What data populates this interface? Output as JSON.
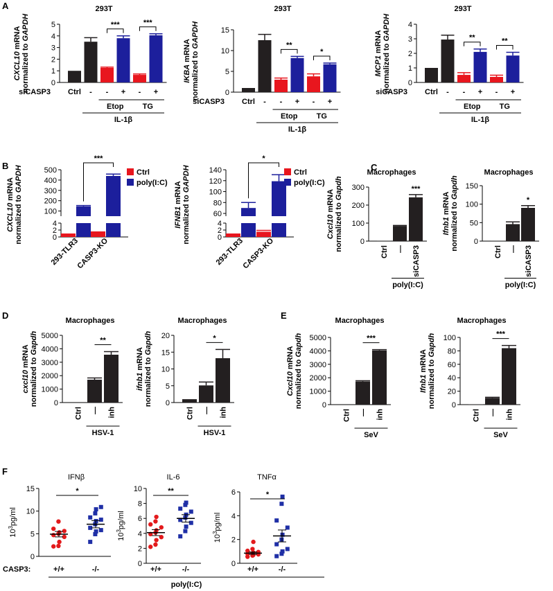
{
  "figure": {
    "colors": {
      "black": "#231f20",
      "red": "#e8161e",
      "blue": "#1c1f9c",
      "red_dot": "#e31a1c",
      "blue_dot": "#1f2fa6"
    }
  },
  "chart_data": [
    {
      "id": "A1",
      "panel_letter": "A",
      "type": "bar",
      "title": "293T",
      "ylabel_gene": "CXCL10",
      "ylabel_rest": " mRNA",
      "ylabel_line2": "normalized to ",
      "ylabel_norm": "GAPDH",
      "ylim": [
        0,
        5
      ],
      "yticks": [
        "0",
        "1",
        "2",
        "3",
        "4",
        "5"
      ],
      "bars": [
        {
          "value": 1.0,
          "err": 0,
          "color": "black"
        },
        {
          "value": 3.5,
          "err": 0.35,
          "color": "black"
        },
        {
          "value": 1.25,
          "err": 0.07,
          "color": "red"
        },
        {
          "value": 3.8,
          "err": 0.2,
          "color": "blue"
        },
        {
          "value": 0.65,
          "err": 0.08,
          "color": "red"
        },
        {
          "value": 4.05,
          "err": 0.13,
          "color": "blue"
        }
      ],
      "row_label": "siCASP3",
      "row_marks": [
        "Ctrl",
        "-",
        "-",
        "+",
        "-",
        "+"
      ],
      "groups": [
        {
          "label": "Etop",
          "from": 2,
          "to": 3
        },
        {
          "label": "TG",
          "from": 4,
          "to": 5
        }
      ],
      "treatment": {
        "label": "IL-1β",
        "from": 1,
        "to": 5
      },
      "sig": [
        {
          "from": 2,
          "to": 3,
          "label": "***"
        },
        {
          "from": 4,
          "to": 5,
          "label": "***"
        }
      ]
    },
    {
      "id": "A2",
      "type": "bar",
      "title": "293T",
      "ylabel_gene": "IKBA",
      "ylabel_rest": " mRNA",
      "ylabel_line2": "normalized to ",
      "ylabel_norm": "GAPDH",
      "ylim": [
        0,
        15
      ],
      "yticks": [
        "0",
        "5",
        "10",
        "15"
      ],
      "bars": [
        {
          "value": 1.0,
          "err": 0,
          "color": "black"
        },
        {
          "value": 12.5,
          "err": 1.4,
          "color": "black"
        },
        {
          "value": 3.0,
          "err": 0.4,
          "color": "red"
        },
        {
          "value": 8.2,
          "err": 0.4,
          "color": "blue"
        },
        {
          "value": 3.8,
          "err": 0.6,
          "color": "red"
        },
        {
          "value": 6.7,
          "err": 0.3,
          "color": "blue"
        }
      ],
      "row_label": "siCASP3",
      "row_marks": [
        "Ctrl",
        "-",
        "-",
        "+",
        "-",
        "+"
      ],
      "groups": [
        {
          "label": "Etop",
          "from": 2,
          "to": 3
        },
        {
          "label": "TG",
          "from": 4,
          "to": 5
        }
      ],
      "treatment": {
        "label": "IL-1β",
        "from": 1,
        "to": 5
      },
      "sig": [
        {
          "from": 2,
          "to": 3,
          "label": "**"
        },
        {
          "from": 4,
          "to": 5,
          "label": "*"
        }
      ]
    },
    {
      "id": "A3",
      "type": "bar",
      "title": "293T",
      "ylabel_gene": "MCP1",
      "ylabel_rest": " mRNA",
      "ylabel_line2": "normalized to ",
      "ylabel_norm": "GAPDH",
      "ylim": [
        0,
        4
      ],
      "yticks": [
        "0",
        "1",
        "2",
        "3",
        "4"
      ],
      "bars": [
        {
          "value": 1.0,
          "err": 0,
          "color": "black"
        },
        {
          "value": 2.95,
          "err": 0.3,
          "color": "black"
        },
        {
          "value": 0.52,
          "err": 0.15,
          "color": "red"
        },
        {
          "value": 2.1,
          "err": 0.2,
          "color": "blue"
        },
        {
          "value": 0.38,
          "err": 0.12,
          "color": "red"
        },
        {
          "value": 1.85,
          "err": 0.22,
          "color": "blue"
        }
      ],
      "row_label": "siCASP3",
      "row_marks": [
        "Ctrl",
        "-",
        "-",
        "+",
        "-",
        "+"
      ],
      "groups": [
        {
          "label": "Etop",
          "from": 2,
          "to": 3
        },
        {
          "label": "TG",
          "from": 4,
          "to": 5
        }
      ],
      "treatment": {
        "label": "IL-1β",
        "from": 1,
        "to": 5
      },
      "sig": [
        {
          "from": 2,
          "to": 3,
          "label": "**"
        },
        {
          "from": 4,
          "to": 5,
          "label": "**"
        }
      ]
    },
    {
      "id": "B1",
      "panel_letter": "B",
      "type": "bar_broken",
      "ylabel_gene": "CXCL10",
      "ylabel_rest": " mRNA",
      "ylabel_line2": "normalized to ",
      "ylabel_norm": "GAPDH",
      "lower_ticks": [
        "0",
        "2",
        "4"
      ],
      "lower_range": [
        0,
        4
      ],
      "upper_ticks": [
        "100",
        "200",
        "300",
        "400",
        "500"
      ],
      "upper_range": [
        50,
        500
      ],
      "categories": [
        "293-TLR3",
        "CASP3-KO"
      ],
      "series": [
        {
          "name": "Ctrl",
          "color": "red",
          "values": [
            1.0,
            1.3
          ],
          "errs": [
            0,
            0.15
          ]
        },
        {
          "name": "poly(I:C)",
          "color": "blue",
          "values": [
            145,
            440
          ],
          "errs": [
            8,
            18
          ]
        }
      ],
      "sig": [
        {
          "label": "***"
        }
      ],
      "legend": [
        {
          "label": "Ctrl",
          "color": "red"
        },
        {
          "label": "poly(I:C)",
          "color": "blue"
        }
      ]
    },
    {
      "id": "B2",
      "type": "bar_broken",
      "ylabel_gene": "IFNB1",
      "ylabel_rest": " mRNA",
      "ylabel_line2": "normalized to ",
      "ylabel_norm": "GAPDH",
      "lower_ticks": [
        "0",
        "2",
        "4"
      ],
      "lower_range": [
        0,
        4
      ],
      "upper_ticks": [
        "60",
        "80",
        "100",
        "120",
        "140"
      ],
      "upper_range": [
        55,
        140
      ],
      "categories": [
        "293-TLR3",
        "CASP3-KO"
      ],
      "series": [
        {
          "name": "Ctrl",
          "color": "red",
          "values": [
            1.0,
            1.5
          ],
          "errs": [
            0,
            0.4
          ]
        },
        {
          "name": "poly(I:C)",
          "color": "blue",
          "values": [
            70,
            119
          ],
          "errs": [
            10,
            12
          ]
        }
      ],
      "sig": [
        {
          "label": "*"
        }
      ],
      "legend": [
        {
          "label": "Ctrl",
          "color": "red"
        },
        {
          "label": "poly(I:C)",
          "color": "blue"
        }
      ]
    },
    {
      "id": "C1",
      "panel_letter": "C",
      "type": "bar",
      "title": "Macrophages",
      "ylabel_gene": "Cxcl10",
      "ylabel_rest": " mRNA",
      "ylabel_line2": "normalized to ",
      "ylabel_norm": "Gapdh",
      "ylim": [
        0,
        300
      ],
      "yticks": [
        "0",
        "100",
        "200",
        "300"
      ],
      "bars": [
        {
          "value": 1,
          "err": 0,
          "color": "black"
        },
        {
          "value": 84,
          "err": 3,
          "color": "black"
        },
        {
          "value": 243,
          "err": 15,
          "color": "black"
        }
      ],
      "xlabels": [
        "Ctrl",
        "—",
        "siCASP3"
      ],
      "treatment": {
        "label": "poly(I:C)",
        "from": 1,
        "to": 2
      },
      "sig_single": [
        {
          "bar": 2,
          "label": "***"
        }
      ]
    },
    {
      "id": "C2",
      "type": "bar",
      "title": "Macrophages",
      "ylabel_gene": "Ifnb1",
      "ylabel_rest": " mRNA",
      "ylabel_line2": "normalized to ",
      "ylabel_norm": "Gapdh",
      "ylim": [
        0,
        150
      ],
      "yticks": [
        "0",
        "50",
        "100",
        "150"
      ],
      "bars": [
        {
          "value": 0.5,
          "err": 0,
          "color": "black"
        },
        {
          "value": 46,
          "err": 6,
          "color": "black"
        },
        {
          "value": 90,
          "err": 6,
          "color": "black"
        }
      ],
      "xlabels": [
        "Ctrl",
        "—",
        "siCASP3"
      ],
      "treatment": {
        "label": "poly(I:C)",
        "from": 1,
        "to": 2
      },
      "sig_single": [
        {
          "bar": 2,
          "label": "*"
        }
      ]
    },
    {
      "id": "D1",
      "panel_letter": "D",
      "type": "bar",
      "title": "Macrophages",
      "ylabel_gene": "cxcl10",
      "ylabel_rest": " mRNA",
      "ylabel_line2": "normalized to ",
      "ylabel_norm": "Gapdh",
      "ylim": [
        0,
        5000
      ],
      "yticks": [
        "0",
        "1000",
        "2000",
        "3000",
        "4000",
        "5000"
      ],
      "bars": [
        {
          "value": 0,
          "err": 0,
          "color": "black"
        },
        {
          "value": 1700,
          "err": 130,
          "color": "black"
        },
        {
          "value": 3560,
          "err": 230,
          "color": "black"
        }
      ],
      "xlabels": [
        "Ctrl",
        "—",
        "inh"
      ],
      "treatment": {
        "label": "HSV-1",
        "from": 1,
        "to": 2
      },
      "sig": [
        {
          "from": 1,
          "to": 2,
          "label": "**",
          "flat": true
        }
      ]
    },
    {
      "id": "D2",
      "type": "bar",
      "title": "Macrophages",
      "ylabel_gene": "ifnb1",
      "ylabel_rest": " mRNA",
      "ylabel_line2": "normalized to ",
      "ylabel_norm": "Gapdh",
      "ylim": [
        0,
        20
      ],
      "yticks": [
        "0",
        "5",
        "10",
        "15",
        "20"
      ],
      "bars": [
        {
          "value": 1,
          "err": 0,
          "color": "black"
        },
        {
          "value": 5.1,
          "err": 1.0,
          "color": "black"
        },
        {
          "value": 13.2,
          "err": 2.6,
          "color": "black"
        }
      ],
      "xlabels": [
        "Ctrl",
        "—",
        "inh"
      ],
      "treatment": {
        "label": "HSV-1",
        "from": 1,
        "to": 2
      },
      "sig": [
        {
          "from": 1,
          "to": 2,
          "label": "*",
          "flat": true
        }
      ]
    },
    {
      "id": "E1",
      "panel_letter": "E",
      "type": "bar",
      "title": "Macrophages",
      "ylabel_gene": "Cxcl10",
      "ylabel_rest": " mRNA",
      "ylabel_line2": "normalized to ",
      "ylabel_norm": "Gapdh",
      "ylim": [
        0,
        5000
      ],
      "yticks": [
        "0",
        "1000",
        "2000",
        "3000",
        "4000",
        "5000"
      ],
      "bars": [
        {
          "value": 0,
          "err": 0,
          "color": "black"
        },
        {
          "value": 1720,
          "err": 60,
          "color": "black"
        },
        {
          "value": 4030,
          "err": 60,
          "color": "black"
        }
      ],
      "xlabels": [
        "Ctrl",
        "—",
        "inh"
      ],
      "treatment": {
        "label": "SeV",
        "from": 1,
        "to": 2
      },
      "sig": [
        {
          "from": 1,
          "to": 2,
          "label": "***",
          "flat": true
        }
      ]
    },
    {
      "id": "E2",
      "type": "bar",
      "title": "Macrophages",
      "ylabel_gene": "Ifnb1",
      "ylabel_rest": " mRNA",
      "ylabel_line2": "normalized to ",
      "ylabel_norm": "Gapdh",
      "ylim": [
        0,
        100
      ],
      "yticks": [
        "0",
        "20",
        "40",
        "60",
        "80",
        "100"
      ],
      "bars": [
        {
          "value": 0.5,
          "err": 0,
          "color": "black"
        },
        {
          "value": 10,
          "err": 1,
          "color": "black"
        },
        {
          "value": 84,
          "err": 4,
          "color": "black"
        }
      ],
      "xlabels": [
        "Ctrl",
        "—",
        "inh"
      ],
      "treatment": {
        "label": "SeV",
        "from": 1,
        "to": 2
      },
      "sig": [
        {
          "from": 1,
          "to": 2,
          "label": "***",
          "flat": true
        }
      ]
    },
    {
      "id": "F1",
      "panel_letter": "F",
      "type": "scatter",
      "title": "IFNβ",
      "ylabel_sup": "3",
      "ylabel_base": "10",
      "ylabel_unit": "pg/ml",
      "ylim": [
        0,
        15
      ],
      "yticks": [
        "0",
        "5",
        "10",
        "15"
      ],
      "groups": [
        {
          "label": "+/+",
          "color": "red_dot",
          "shape": "circle",
          "mean": 4.9,
          "sem": 0.6,
          "points": [
            2.2,
            2.3,
            3.2,
            4.3,
            4.7,
            5.0,
            5.3,
            5.6,
            6.1,
            7.7
          ]
        },
        {
          "label": "-/-",
          "color": "blue_dot",
          "shape": "square",
          "mean": 7.1,
          "sem": 0.8,
          "points": [
            3.2,
            4.9,
            5.5,
            5.8,
            6.3,
            7.1,
            7.8,
            8.1,
            8.6,
            9.5,
            10.4,
            10.9
          ]
        }
      ],
      "sig": [
        {
          "label": "*"
        }
      ]
    },
    {
      "id": "F2",
      "type": "scatter",
      "title": "IL-6",
      "ylabel_sup": "3",
      "ylabel_base": "10",
      "ylabel_unit": "pg/ml",
      "ylim": [
        0,
        10
      ],
      "yticks": [
        "0",
        "2",
        "4",
        "6",
        "8",
        "10"
      ],
      "groups": [
        {
          "label": "+/+",
          "color": "red_dot",
          "shape": "circle",
          "mean": 4.1,
          "sem": 0.4,
          "points": [
            2.2,
            2.5,
            3.1,
            3.5,
            3.9,
            4.1,
            4.4,
            4.8,
            5.2,
            5.6,
            6.2
          ]
        },
        {
          "label": "-/-",
          "color": "blue_dot",
          "shape": "square",
          "mean": 6.0,
          "sem": 0.5,
          "points": [
            3.6,
            4.3,
            4.9,
            5.4,
            5.8,
            6.1,
            6.5,
            6.9,
            7.3,
            7.8,
            8.1
          ]
        }
      ],
      "sig": [
        {
          "label": "**"
        }
      ]
    },
    {
      "id": "F3",
      "type": "scatter",
      "title": "TNFα",
      "ylabel_sup": "3",
      "ylabel_base": "10",
      "ylabel_unit": "pg/ml",
      "ylim": [
        0,
        6
      ],
      "yticks": [
        "0",
        "2",
        "4",
        "6"
      ],
      "groups": [
        {
          "label": "+/+",
          "color": "red_dot",
          "shape": "circle",
          "mean": 0.85,
          "sem": 0.1,
          "points": [
            0.55,
            0.65,
            0.7,
            0.75,
            0.8,
            0.85,
            0.9,
            0.95,
            1.05,
            1.2,
            1.8
          ]
        },
        {
          "label": "-/-",
          "color": "blue_dot",
          "shape": "square",
          "mean": 2.3,
          "sem": 0.5,
          "points": [
            0.6,
            0.8,
            1.0,
            1.2,
            1.6,
            2.0,
            2.4,
            3.0,
            3.6,
            5.0,
            5.6
          ]
        }
      ],
      "sig": [
        {
          "label": "*"
        }
      ]
    }
  ],
  "panel_f_footer": {
    "row_label": "CASP3:",
    "treatment": "poly(I:C)"
  }
}
